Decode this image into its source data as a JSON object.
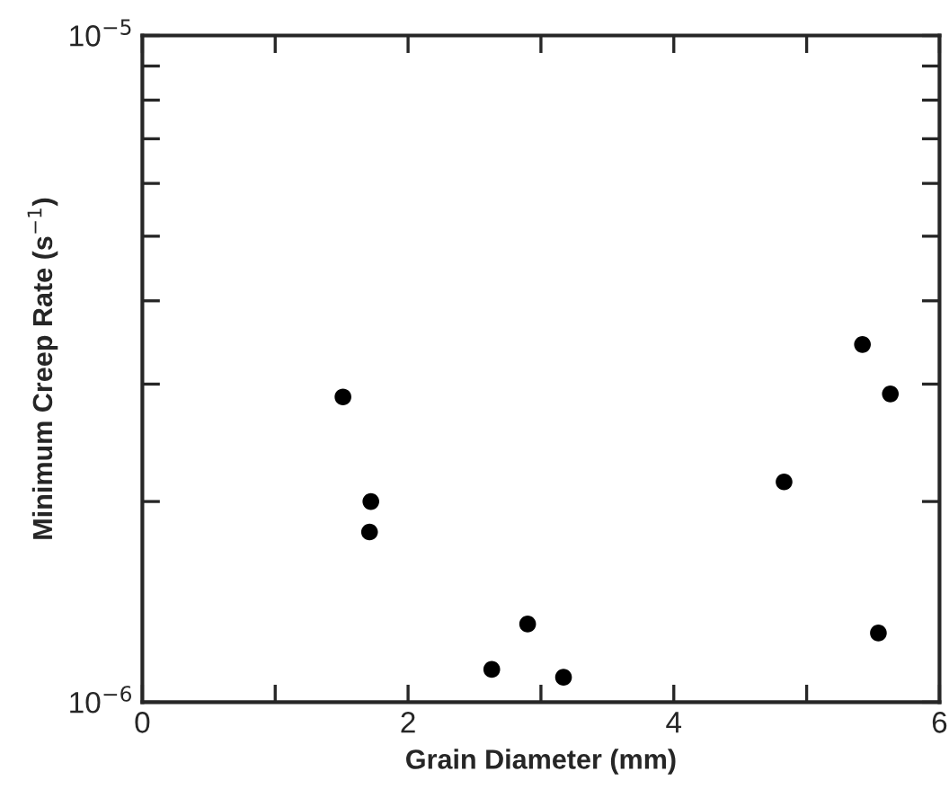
{
  "chart_data": {
    "type": "scatter",
    "xlabel": "Grain Diameter (mm)",
    "ylabel": "Minimum Creep Rate (s$^{−1}$)",
    "x": [
      1.51,
      1.72,
      1.71,
      2.63,
      2.9,
      3.17,
      4.83,
      5.42,
      5.63,
      5.54
    ],
    "series": [
      {
        "color": "#000000",
        "values": [
          2.87e-06,
          2e-06,
          1.8e-06,
          1.12e-06,
          1.31e-06,
          1.09e-06,
          2.14e-06,
          3.44e-06,
          2.9e-06,
          1.27e-06
        ]
      }
    ],
    "log": "y",
    "marker": "circle",
    "grid": false,
    "xlim": [
      0,
      6
    ],
    "xticks": [
      0,
      {
        "value": 1,
        "label": null
      },
      2,
      {
        "value": 3,
        "label": null
      },
      4,
      {
        "value": 5,
        "label": null
      },
      6
    ],
    "ylim": [
      1e-06,
      1e-05
    ],
    "yticks": [
      {
        "value": 1e-06,
        "label": "10$^{−6}$"
      },
      {
        "value": 2e-06,
        "label": null
      },
      {
        "value": 3e-06,
        "label": null
      },
      {
        "value": 4e-06,
        "label": null
      },
      {
        "value": 5e-06,
        "label": null
      },
      {
        "value": 6e-06,
        "label": null
      },
      {
        "value": 7e-06,
        "label": null
      },
      {
        "value": 8e-06,
        "label": null
      },
      {
        "value": 9e-06,
        "label": null
      },
      {
        "value": 1e-05,
        "label": "10$^{−5}$"
      }
    ]
  }
}
